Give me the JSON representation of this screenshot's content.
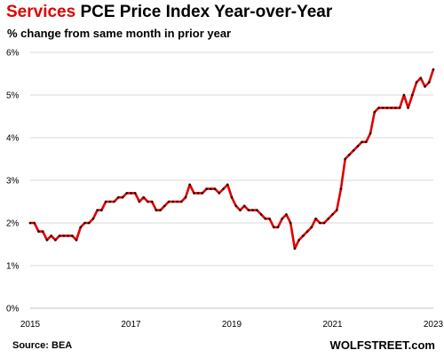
{
  "header": {
    "title_accent": "Services",
    "title_rest": " PCE Price Index Year-over-Year",
    "subtitle": "% change from same month in prior year"
  },
  "footer": {
    "source": "Source: BEA",
    "brand": "WOLFSTREET.com"
  },
  "colors": {
    "line": "#e00000",
    "marker": "#2a0000",
    "grid": "#d9d9d9",
    "title_accent": "#e00000"
  },
  "chart_data": {
    "type": "line",
    "title": "Services PCE Price Index Year-over-Year",
    "subtitle": "% change from same month in prior year",
    "xlabel": "",
    "ylabel": "",
    "x_ticks": [
      "2015",
      "2017",
      "2019",
      "2021",
      "2023"
    ],
    "y_ticks": [
      "0%",
      "1%",
      "2%",
      "3%",
      "4%",
      "5%",
      "6%"
    ],
    "ylim": [
      0,
      6
    ],
    "xlim": [
      "2015-01",
      "2023-01"
    ],
    "grid": "horizontal",
    "legend": "none",
    "series": [
      {
        "x": [
          "2015-01",
          "2015-02",
          "2015-03",
          "2015-04",
          "2015-05",
          "2015-06",
          "2015-07",
          "2015-08",
          "2015-09",
          "2015-10",
          "2015-11",
          "2015-12",
          "2016-01",
          "2016-02",
          "2016-03",
          "2016-04",
          "2016-05",
          "2016-06",
          "2016-07",
          "2016-08",
          "2016-09",
          "2016-10",
          "2016-11",
          "2016-12",
          "2017-01",
          "2017-02",
          "2017-03",
          "2017-04",
          "2017-05",
          "2017-06",
          "2017-07",
          "2017-08",
          "2017-09",
          "2017-10",
          "2017-11",
          "2017-12",
          "2018-01",
          "2018-02",
          "2018-03",
          "2018-04",
          "2018-05",
          "2018-06",
          "2018-07",
          "2018-08",
          "2018-09",
          "2018-10",
          "2018-11",
          "2018-12",
          "2019-01",
          "2019-02",
          "2019-03",
          "2019-04",
          "2019-05",
          "2019-06",
          "2019-07",
          "2019-08",
          "2019-09",
          "2019-10",
          "2019-11",
          "2019-12",
          "2020-01",
          "2020-02",
          "2020-03",
          "2020-04",
          "2020-05",
          "2020-06",
          "2020-07",
          "2020-08",
          "2020-09",
          "2020-10",
          "2020-11",
          "2020-12",
          "2021-01",
          "2021-02",
          "2021-03",
          "2021-04",
          "2021-05",
          "2021-06",
          "2021-07",
          "2021-08",
          "2021-09",
          "2021-10",
          "2021-11",
          "2021-12",
          "2022-01",
          "2022-02",
          "2022-03",
          "2022-04",
          "2022-05",
          "2022-06",
          "2022-07",
          "2022-08",
          "2022-09",
          "2022-10",
          "2022-11",
          "2022-12",
          "2023-01"
        ],
        "values": [
          2.0,
          2.0,
          1.8,
          1.8,
          1.6,
          1.7,
          1.6,
          1.7,
          1.7,
          1.7,
          1.7,
          1.6,
          1.9,
          2.0,
          2.0,
          2.1,
          2.3,
          2.3,
          2.5,
          2.5,
          2.5,
          2.6,
          2.6,
          2.7,
          2.7,
          2.7,
          2.5,
          2.6,
          2.5,
          2.5,
          2.3,
          2.3,
          2.4,
          2.5,
          2.5,
          2.5,
          2.5,
          2.6,
          2.9,
          2.7,
          2.7,
          2.7,
          2.8,
          2.8,
          2.8,
          2.7,
          2.8,
          2.9,
          2.6,
          2.4,
          2.3,
          2.4,
          2.3,
          2.3,
          2.3,
          2.2,
          2.1,
          2.1,
          1.9,
          1.9,
          2.1,
          2.2,
          2.0,
          1.4,
          1.6,
          1.7,
          1.8,
          1.9,
          2.1,
          2.0,
          2.0,
          2.1,
          2.2,
          2.3,
          2.8,
          3.5,
          3.6,
          3.7,
          3.8,
          3.9,
          3.9,
          4.1,
          4.6,
          4.7,
          4.7,
          4.7,
          4.7,
          4.7,
          4.7,
          5.0,
          4.7,
          5.0,
          5.3,
          5.4,
          5.2,
          5.3,
          5.6
        ]
      }
    ]
  }
}
